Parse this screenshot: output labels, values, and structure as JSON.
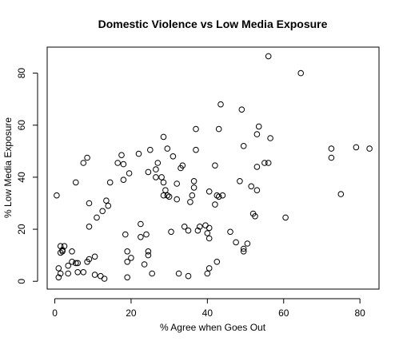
{
  "chart_data": {
    "type": "scatter",
    "title": "Domestic Violence vs Low Media Exposure",
    "xlabel": "% Agree when Goes Out",
    "ylabel": "% Low Media Exposure",
    "xlim": [
      -2,
      85
    ],
    "ylim": [
      -3,
      90
    ],
    "xticks": [
      0,
      20,
      40,
      60,
      80
    ],
    "yticks": [
      0,
      20,
      40,
      60,
      80
    ],
    "grid": false,
    "legend": "none",
    "marker": "open-circle",
    "color": "#000000",
    "points": [
      [
        0.5,
        33
      ],
      [
        1,
        5
      ],
      [
        1,
        1.5
      ],
      [
        1.5,
        11
      ],
      [
        1.5,
        13.5
      ],
      [
        2,
        11.5
      ],
      [
        2,
        12
      ],
      [
        2.5,
        13.5
      ],
      [
        1.5,
        3
      ],
      [
        3.5,
        3
      ],
      [
        3.5,
        6
      ],
      [
        4.5,
        7.5
      ],
      [
        4.5,
        11.5
      ],
      [
        5.5,
        7
      ],
      [
        6,
        3.5
      ],
      [
        6,
        7
      ],
      [
        5.5,
        38
      ],
      [
        7.5,
        3.5
      ],
      [
        7.5,
        45.5
      ],
      [
        8.5,
        47.5
      ],
      [
        8.5,
        7.5
      ],
      [
        9,
        30
      ],
      [
        9,
        21
      ],
      [
        9,
        8.5
      ],
      [
        10.5,
        9.5
      ],
      [
        10.5,
        2.5
      ],
      [
        11,
        24.5
      ],
      [
        12,
        2
      ],
      [
        12.5,
        27
      ],
      [
        13,
        1
      ],
      [
        13.5,
        31
      ],
      [
        14,
        29
      ],
      [
        14.5,
        38
      ],
      [
        16.5,
        45.5
      ],
      [
        17.5,
        48.5
      ],
      [
        18,
        39
      ],
      [
        18,
        45
      ],
      [
        18.5,
        18
      ],
      [
        19,
        11.5
      ],
      [
        19,
        7.5
      ],
      [
        19.5,
        41.5
      ],
      [
        20,
        9
      ],
      [
        19,
        1.5
      ],
      [
        22,
        49
      ],
      [
        22.5,
        17
      ],
      [
        22.5,
        22
      ],
      [
        23.5,
        6.5
      ],
      [
        24,
        18
      ],
      [
        24.5,
        10
      ],
      [
        24.5,
        11.5
      ],
      [
        24.5,
        42
      ],
      [
        25,
        50.5
      ],
      [
        25.5,
        3
      ],
      [
        26.5,
        40
      ],
      [
        26.5,
        43
      ],
      [
        27,
        45.5
      ],
      [
        28,
        40
      ],
      [
        28.5,
        38
      ],
      [
        28.5,
        33
      ],
      [
        28.5,
        55.5
      ],
      [
        29,
        35
      ],
      [
        29.5,
        51
      ],
      [
        29.5,
        33
      ],
      [
        30,
        32.5
      ],
      [
        30.5,
        19
      ],
      [
        31,
        48
      ],
      [
        32,
        31.5
      ],
      [
        32,
        37.5
      ],
      [
        32.5,
        3
      ],
      [
        33,
        43.5
      ],
      [
        33.5,
        44.5
      ],
      [
        34,
        21
      ],
      [
        35,
        19.5
      ],
      [
        35,
        2
      ],
      [
        35.5,
        30.5
      ],
      [
        36,
        33
      ],
      [
        36.5,
        38.5
      ],
      [
        36.5,
        36
      ],
      [
        37,
        50.5
      ],
      [
        37,
        58.5
      ],
      [
        37.5,
        19.5
      ],
      [
        38,
        21
      ],
      [
        39.5,
        21.5
      ],
      [
        40,
        18.5
      ],
      [
        40,
        3
      ],
      [
        40.5,
        16.5
      ],
      [
        40.5,
        5
      ],
      [
        40.5,
        20.5
      ],
      [
        40.5,
        34.5
      ],
      [
        42,
        44.5
      ],
      [
        42,
        29.5
      ],
      [
        42.5,
        33
      ],
      [
        42.5,
        7.5
      ],
      [
        43,
        58.5
      ],
      [
        43,
        32.5
      ],
      [
        43.5,
        68
      ],
      [
        44,
        33
      ],
      [
        46,
        19
      ],
      [
        47.5,
        15
      ],
      [
        48.5,
        38.5
      ],
      [
        49,
        66
      ],
      [
        49.5,
        12.5
      ],
      [
        49.5,
        11.5
      ],
      [
        49.5,
        52
      ],
      [
        50.5,
        14.5
      ],
      [
        51.5,
        36.5
      ],
      [
        52,
        26
      ],
      [
        52.5,
        25
      ],
      [
        53,
        35
      ],
      [
        53,
        44
      ],
      [
        53,
        56.5
      ],
      [
        53.5,
        59.5
      ],
      [
        55,
        45.5
      ],
      [
        56,
        45.5
      ],
      [
        56,
        86.5
      ],
      [
        56.5,
        55
      ],
      [
        60.5,
        24.5
      ],
      [
        64.5,
        80
      ],
      [
        72.5,
        51
      ],
      [
        72.5,
        47.5
      ],
      [
        75,
        33.5
      ],
      [
        79,
        51.5
      ],
      [
        82.5,
        51
      ]
    ]
  }
}
